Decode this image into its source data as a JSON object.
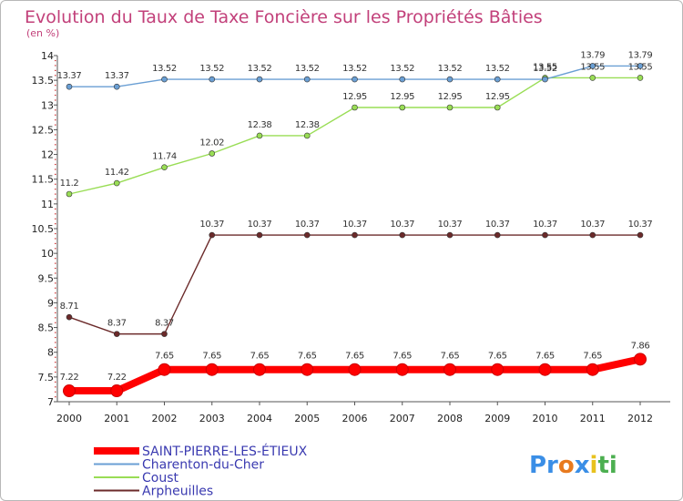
{
  "chart_data": {
    "type": "line",
    "title": "Evolution du Taux de Taxe Foncière sur les Propriétés Bâties",
    "subtitle": "(en %)",
    "x": [
      "2000",
      "2001",
      "2002",
      "2003",
      "2004",
      "2005",
      "2006",
      "2007",
      "2008",
      "2009",
      "2010",
      "2011",
      "2012"
    ],
    "ylim": [
      7,
      14
    ],
    "yticks": [
      "7",
      "7.5",
      "8",
      "8.5",
      "9",
      "9.5",
      "10",
      "10.5",
      "11",
      "11.5",
      "12",
      "12.5",
      "13",
      "13.5",
      "14"
    ],
    "ytick_values": [
      7,
      7.5,
      8,
      8.5,
      9,
      9.5,
      10,
      10.5,
      11,
      11.5,
      12,
      12.5,
      13,
      13.5,
      14
    ],
    "series": [
      {
        "name": "SAINT-PIERRE-LES-ÉTIEUX",
        "color": "#ff0000",
        "values": [
          7.22,
          7.22,
          7.65,
          7.65,
          7.65,
          7.65,
          7.65,
          7.65,
          7.65,
          7.65,
          7.65,
          7.65,
          7.86
        ],
        "labels": [
          "7.22",
          "7.22",
          "7.65",
          "7.65",
          "7.65",
          "7.65",
          "7.65",
          "7.65",
          "7.65",
          "7.65",
          "7.65",
          "7.65",
          "7.86"
        ]
      },
      {
        "name": "Charenton-du-Cher",
        "color": "#6a9fd4",
        "values": [
          13.37,
          13.37,
          13.52,
          13.52,
          13.52,
          13.52,
          13.52,
          13.52,
          13.52,
          13.52,
          13.52,
          13.79,
          13.79
        ],
        "labels": [
          "13.37",
          "13.37",
          "13.52",
          "13.52",
          "13.52",
          "13.52",
          "13.52",
          "13.52",
          "13.52",
          "13.52",
          "13.52",
          "13.79",
          "13.79"
        ]
      },
      {
        "name": "Coust",
        "color": "#99dd55",
        "values": [
          11.2,
          11.42,
          11.74,
          12.02,
          12.38,
          12.38,
          12.95,
          12.95,
          12.95,
          12.95,
          13.55,
          13.55,
          13.55
        ],
        "labels": [
          "11.2",
          "11.42",
          "11.74",
          "12.02",
          "12.38",
          "12.38",
          "12.95",
          "12.95",
          "12.95",
          "12.95",
          "13.55",
          "13.55",
          "13.55"
        ]
      },
      {
        "name": "Arpheuilles",
        "color": "#6b2a2a",
        "values": [
          8.71,
          8.37,
          8.37,
          10.37,
          10.37,
          10.37,
          10.37,
          10.37,
          10.37,
          10.37,
          10.37,
          10.37,
          10.37
        ],
        "labels": [
          "8.71",
          "8.37",
          "8.37",
          "10.37",
          "10.37",
          "10.37",
          "10.37",
          "10.37",
          "10.37",
          "10.37",
          "10.37",
          "10.37",
          "10.37"
        ]
      }
    ],
    "legend": {
      "placement": "bottom-left"
    },
    "grid": false
  },
  "brand": {
    "parts": [
      "Pr",
      "o",
      "x",
      "i",
      "ti"
    ],
    "colors": [
      "#3a8ee6",
      "#e87a1e",
      "#3a8ee6",
      "#e8c21e",
      "#4caf50"
    ]
  }
}
